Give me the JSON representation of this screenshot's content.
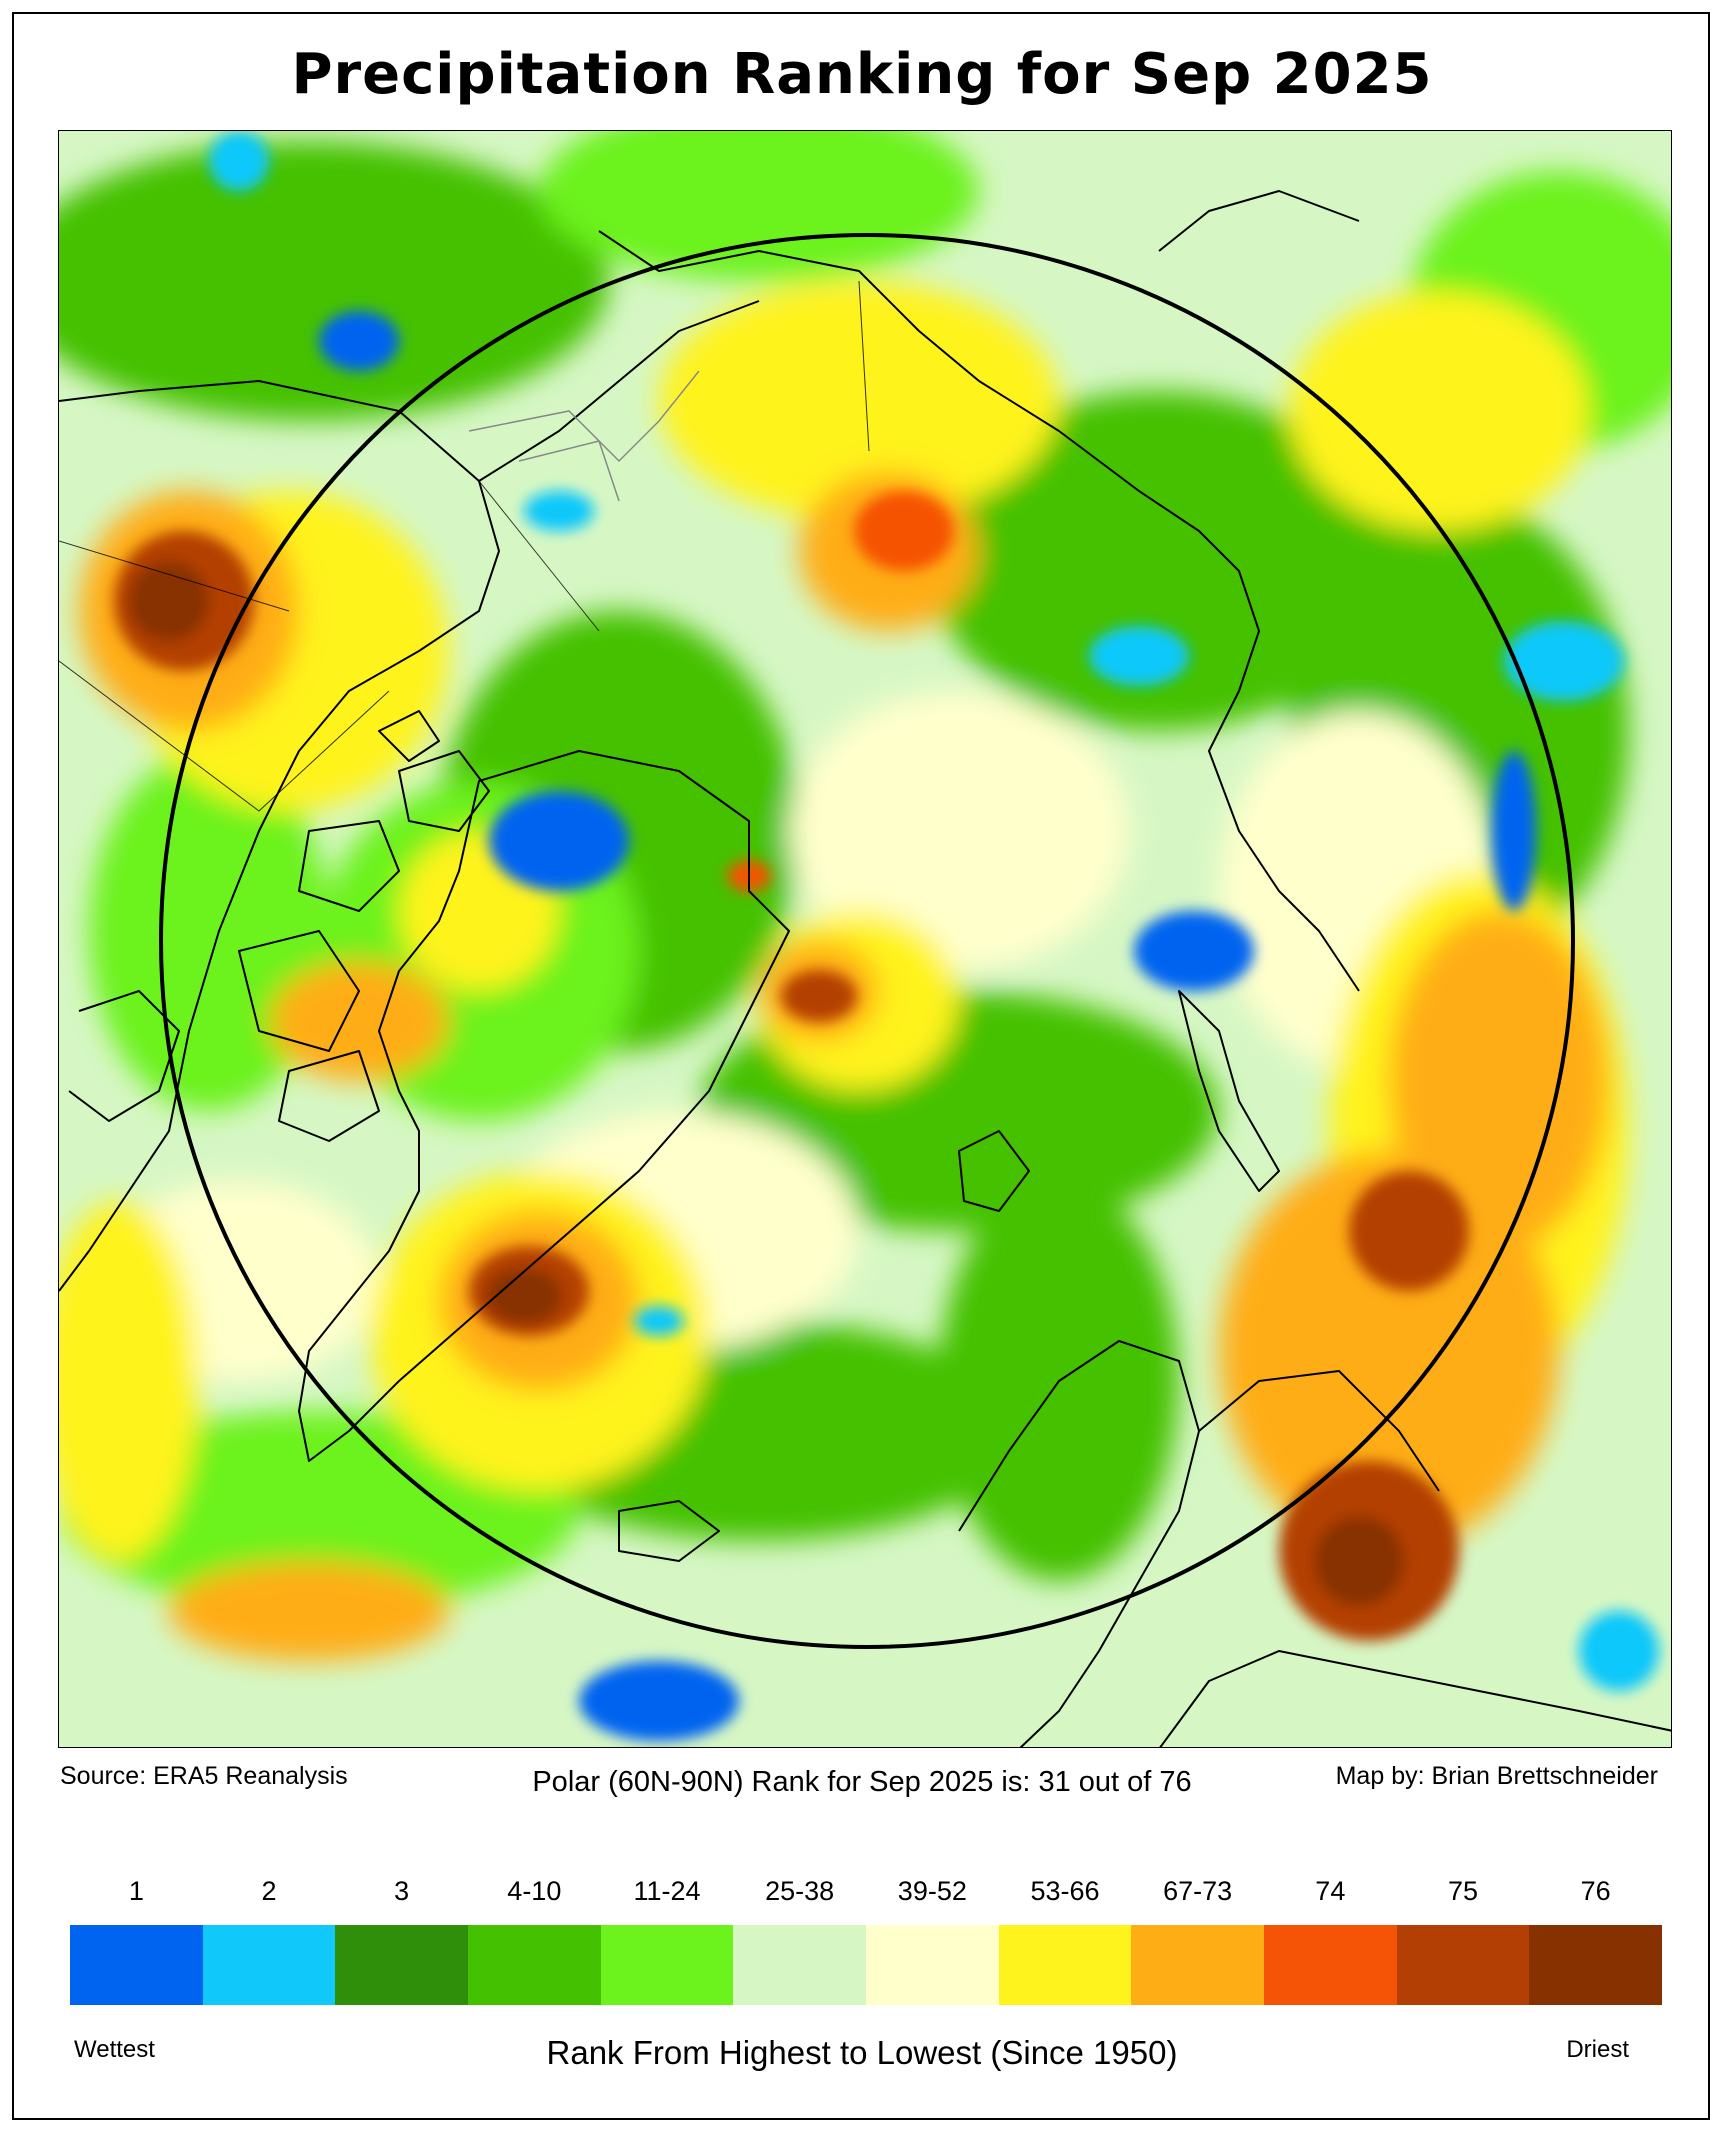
{
  "title": "Precipitation Ranking for Sep 2025",
  "captions": {
    "source": "Source: ERA5 Reanalysis",
    "summary": "Polar (60N-90N) Rank for Sep 2025 is: 31 out of 76",
    "author": "Map by: Brian Brettschneider"
  },
  "legend": {
    "axis_label": "Rank From Highest to Lowest (Since 1950)",
    "left_end": "Wettest",
    "right_end": "Driest",
    "bins": [
      {
        "label": "1",
        "color": "#0064f0"
      },
      {
        "label": "2",
        "color": "#10c8fa"
      },
      {
        "label": "3",
        "color": "#2f8f0a"
      },
      {
        "label": "4-10",
        "color": "#44c100"
      },
      {
        "label": "11-24",
        "color": "#6cf21c"
      },
      {
        "label": "25-38",
        "color": "#d6f7c4"
      },
      {
        "label": "39-52",
        "color": "#ffffcc"
      },
      {
        "label": "53-66",
        "color": "#fff31e"
      },
      {
        "label": "67-73",
        "color": "#ffad15"
      },
      {
        "label": "74",
        "color": "#f55305"
      },
      {
        "label": "75",
        "color": "#b43f05"
      },
      {
        "label": "76",
        "color": "#873000"
      }
    ]
  },
  "map": {
    "projection": "north polar stereographic",
    "region_circle": "60N-90N",
    "polar_rank": 31,
    "total_years": 76
  }
}
